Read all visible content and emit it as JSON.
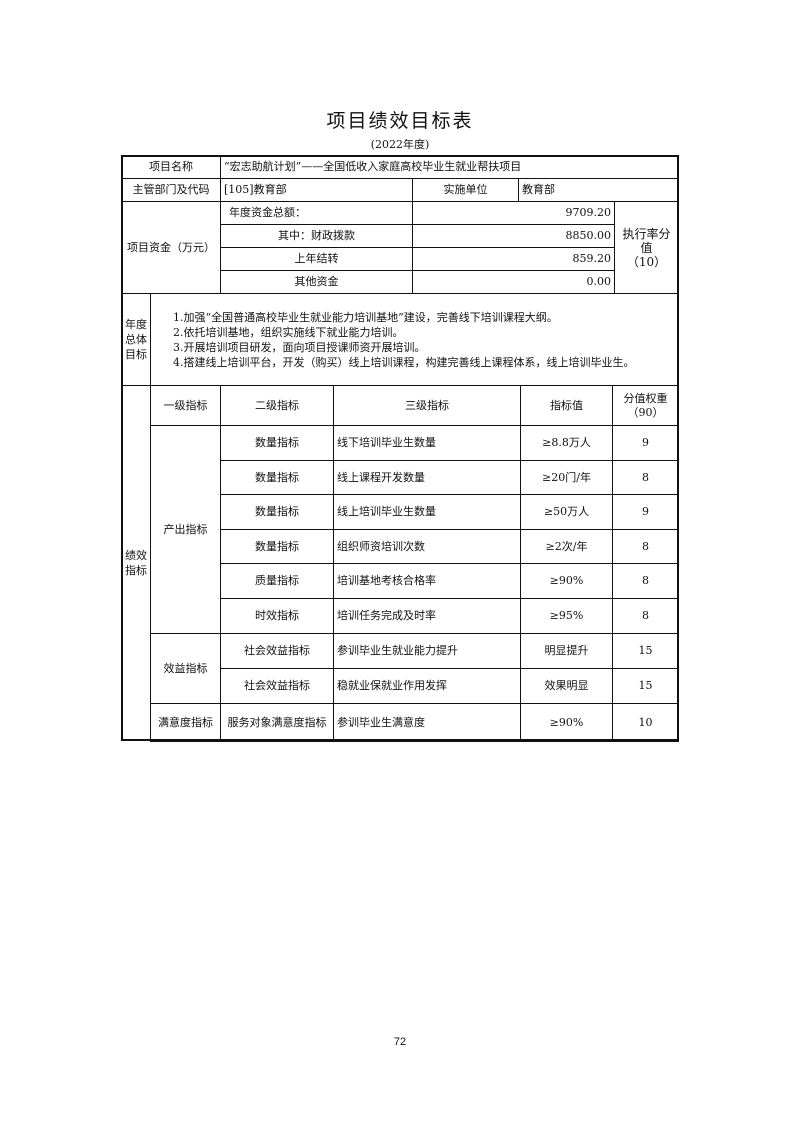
{
  "title": "项目绩效目标表",
  "subtitle": "(2022年度)",
  "project": {
    "name_label": "项目名称",
    "name_value": "“宏志助航计划”——全国低收入家庭高校毕业生就业帮扶项目",
    "dept_label": "主管部门及代码",
    "dept_value": "[105]教育部",
    "impl_label": "实施单位",
    "impl_value": "教育部"
  },
  "funds": {
    "label": "项目资金（万元）",
    "rows": [
      {
        "name": "年度资金总额：",
        "value": "9709.20"
      },
      {
        "name": "其中：财政拨款",
        "value": "8850.00"
      },
      {
        "name": "上年结转",
        "value": "859.20"
      },
      {
        "name": "其他资金",
        "value": "0.00"
      }
    ],
    "exec_label": "执行率分值",
    "exec_score": "（10）"
  },
  "goals": {
    "label": "年度总体目标",
    "items": [
      "1.加强“全国普通高校毕业生就业能力培训基地”建设，完善线下培训课程大纲。",
      "2.依托培训基地，组织实施线下就业能力培训。",
      "3.开展培训项目研发，面向项目授课师资开展培训。",
      "4.搭建线上培训平台，开发（购买）线上培训课程，构建完善线上课程体系，线上培训毕业生。"
    ]
  },
  "indicators": {
    "label": "绩效指标",
    "headers": [
      "一级指标",
      "二级指标",
      "三级指标",
      "指标值",
      "分值权重",
      "（90）"
    ],
    "groups": [
      {
        "level1": "产出指标",
        "rows": [
          {
            "level2": "数量指标",
            "level3": "线下培训毕业生数量",
            "value": "≥8.8万人",
            "weight": "9"
          },
          {
            "level2": "数量指标",
            "level3": "线上课程开发数量",
            "value": "≥20门/年",
            "weight": "8"
          },
          {
            "level2": "数量指标",
            "level3": "线上培训毕业生数量",
            "value": "≥50万人",
            "weight": "9"
          },
          {
            "level2": "数量指标",
            "level3": "组织师资培训次数",
            "value": "≥2次/年",
            "weight": "8"
          },
          {
            "level2": "质量指标",
            "level3": "培训基地考核合格率",
            "value": "≥90%",
            "weight": "8"
          },
          {
            "level2": "时效指标",
            "level3": "培训任务完成及时率",
            "value": "≥95%",
            "weight": "8"
          }
        ]
      },
      {
        "level1": "效益指标",
        "rows": [
          {
            "level2": "社会效益指标",
            "level3": "参训毕业生就业能力提升",
            "value": "明显提升",
            "weight": "15"
          },
          {
            "level2": "社会效益指标",
            "level3": "稳就业保就业作用发挥",
            "value": "效果明显",
            "weight": "15"
          }
        ]
      },
      {
        "level1": "满意度指标",
        "rows": [
          {
            "level2": "服务对象满意度指标",
            "level3": "参训毕业生满意度",
            "value": "≥90%",
            "weight": "10"
          }
        ]
      }
    ]
  },
  "page_number": "72"
}
